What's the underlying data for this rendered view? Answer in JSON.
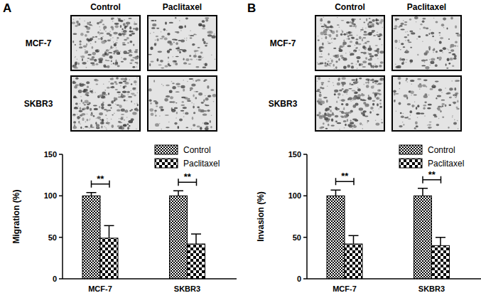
{
  "chart_data": [
    {
      "type": "bar",
      "title": "A",
      "y_label": "Migration (%)",
      "categories": [
        "MCF-7",
        "SKBR3"
      ],
      "series": [
        {
          "name": "Control",
          "color": "#000000",
          "values": [
            100,
            100
          ],
          "errors": [
            4,
            6
          ]
        },
        {
          "name": "Paclitaxel",
          "color": "#000000",
          "values": [
            49,
            42
          ],
          "errors": [
            15,
            12
          ]
        }
      ],
      "ylim": [
        0,
        150
      ],
      "yticks": [
        0,
        50,
        100,
        150
      ],
      "legend": "top right",
      "annotations": [
        {
          "text": "**",
          "category": "MCF-7"
        },
        {
          "text": "**",
          "category": "SKBR3"
        }
      ],
      "micrograph_columns": [
        "Control",
        "Paclitaxel"
      ],
      "micrograph_rows": [
        "MCF-7",
        "SKBR3"
      ]
    },
    {
      "type": "bar",
      "title": "B",
      "y_label": "Invasion (%)",
      "categories": [
        "MCF-7",
        "SKBR3"
      ],
      "series": [
        {
          "name": "Control",
          "color": "#000000",
          "values": [
            100,
            100
          ],
          "errors": [
            7,
            9
          ]
        },
        {
          "name": "Paclitaxel",
          "color": "#000000",
          "values": [
            42,
            40
          ],
          "errors": [
            10,
            10
          ]
        }
      ],
      "ylim": [
        0,
        150
      ],
      "yticks": [
        0,
        50,
        100,
        150
      ],
      "legend": "top right",
      "annotations": [
        {
          "text": "**",
          "category": "MCF-7"
        },
        {
          "text": "**",
          "category": "SKBR3"
        }
      ],
      "micrograph_columns": [
        "Control",
        "Paclitaxel"
      ],
      "micrograph_rows": [
        "MCF-7",
        "SKBR3"
      ]
    }
  ]
}
